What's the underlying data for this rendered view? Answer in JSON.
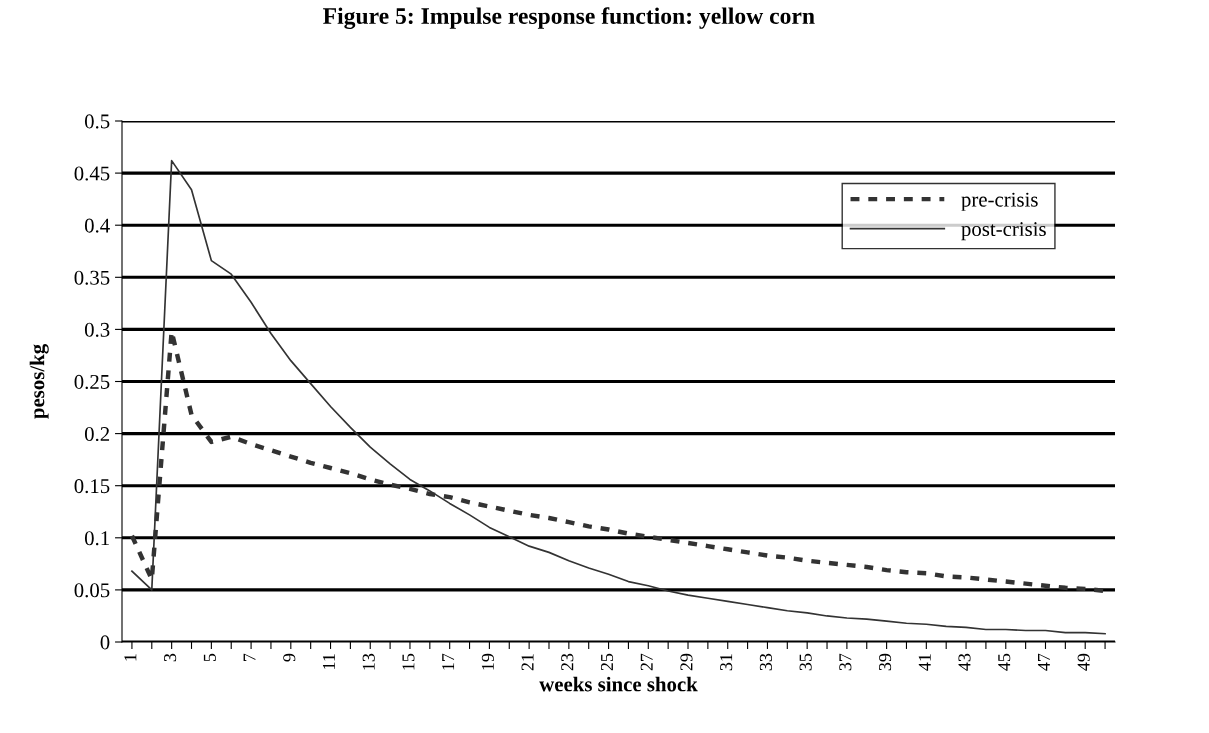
{
  "chart_data": {
    "type": "line",
    "title": "Figure 5: Impulse response function: yellow corn",
    "xlabel": "weeks since shock",
    "ylabel": "pesos/kg",
    "categories": [
      "1",
      null,
      "3",
      null,
      "5",
      null,
      "7",
      null,
      "9",
      null,
      "11",
      null,
      "13",
      null,
      "15",
      null,
      "17",
      null,
      "19",
      null,
      "21",
      null,
      "23",
      null,
      "25",
      null,
      "27",
      null,
      "29",
      null,
      "31",
      null,
      "33",
      null,
      "35",
      null,
      "37",
      null,
      "39",
      null,
      "41",
      null,
      "43",
      null,
      "45",
      null,
      "47",
      null,
      "49",
      null
    ],
    "series": [
      {
        "name": "pre-crisis",
        "color": "#333333",
        "line_style": "dashed",
        "values": [
          0.102,
          0.06,
          0.298,
          0.218,
          0.192,
          0.197,
          0.19,
          0.184,
          0.178,
          0.172,
          0.167,
          0.162,
          0.156,
          0.151,
          0.147,
          0.142,
          0.139,
          0.134,
          0.13,
          0.126,
          0.122,
          0.119,
          0.115,
          0.111,
          0.108,
          0.104,
          0.101,
          0.098,
          0.095,
          0.092,
          0.089,
          0.086,
          0.083,
          0.081,
          0.078,
          0.076,
          0.074,
          0.072,
          0.069,
          0.067,
          0.066,
          0.063,
          0.062,
          0.06,
          0.058,
          0.056,
          0.054,
          0.052,
          0.051,
          0.049
        ]
      },
      {
        "name": "post-crisis",
        "color": "#333333",
        "line_style": "solid",
        "values": [
          0.068,
          0.05,
          0.462,
          0.434,
          0.366,
          0.353,
          0.326,
          0.296,
          0.27,
          0.248,
          0.226,
          0.206,
          0.187,
          0.171,
          0.156,
          0.145,
          0.133,
          0.122,
          0.11,
          0.101,
          0.092,
          0.086,
          0.078,
          0.071,
          0.065,
          0.058,
          0.054,
          0.049,
          0.045,
          0.042,
          0.039,
          0.036,
          0.033,
          0.03,
          0.028,
          0.025,
          0.023,
          0.022,
          0.02,
          0.018,
          0.017,
          0.015,
          0.014,
          0.012,
          0.012,
          0.011,
          0.011,
          0.009,
          0.009,
          0.008
        ]
      }
    ],
    "ylim": [
      0,
      0.5
    ],
    "yticks": [
      0,
      0.05,
      0.1,
      0.15,
      0.2,
      0.25,
      0.3,
      0.35,
      0.4,
      0.45,
      0.5
    ],
    "grid": "y",
    "legend": "top right",
    "marker": "none"
  }
}
